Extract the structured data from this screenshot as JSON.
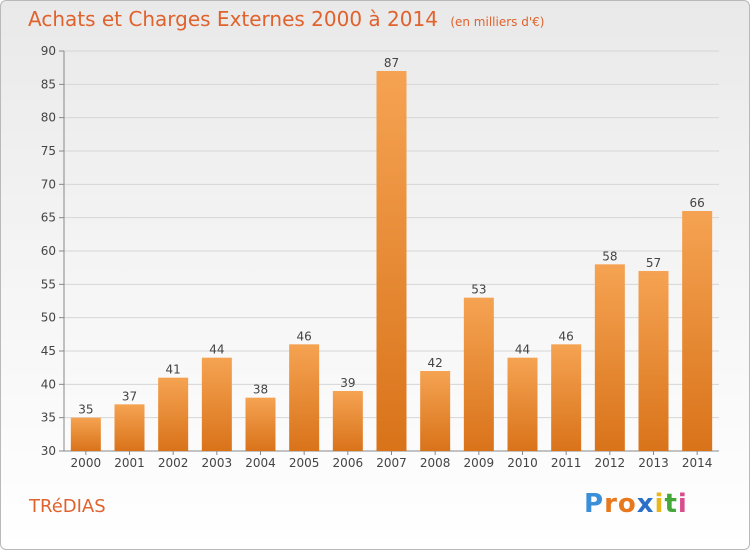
{
  "header": {
    "title": "Achats et Charges Externes 2000 à 2014",
    "subtitle": "(en milliers d'€)"
  },
  "footer": {
    "commune": "TRéDIAS",
    "logo_letters": [
      "P",
      "r",
      "o",
      "x",
      "i",
      "t",
      "i"
    ],
    "logo_colors": [
      "#3a8fd8",
      "#e8781e",
      "#e8781e",
      "#2b6fc9",
      "#e8b71e",
      "#43a83a",
      "#d84d8e"
    ]
  },
  "colors": {
    "bar_light": "#f5a352",
    "bar_dark": "#d9731a",
    "accent": "#e0622d"
  },
  "chart_data": {
    "type": "bar",
    "title": "Achats et Charges Externes 2000 à 2014",
    "subtitle": "(en milliers d'€)",
    "categories": [
      "2000",
      "2001",
      "2002",
      "2003",
      "2004",
      "2005",
      "2006",
      "2007",
      "2008",
      "2009",
      "2010",
      "2011",
      "2012",
      "2013",
      "2014"
    ],
    "values": [
      35,
      37,
      41,
      44,
      38,
      46,
      39,
      87,
      42,
      53,
      44,
      46,
      58,
      57,
      66
    ],
    "yticks": [
      30,
      35,
      40,
      45,
      50,
      55,
      60,
      65,
      70,
      75,
      80,
      85,
      90
    ],
    "ylim": [
      30,
      90
    ],
    "grid": true,
    "legend": "none"
  }
}
